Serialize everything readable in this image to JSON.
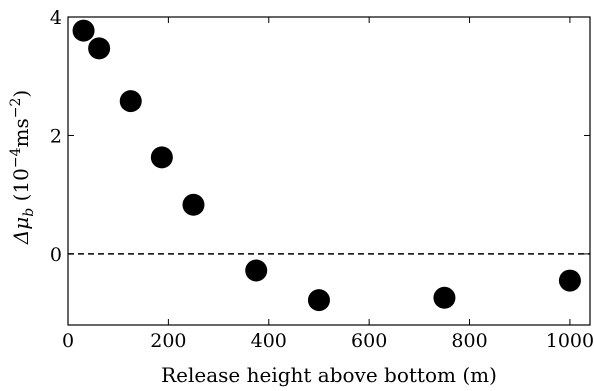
{
  "chart_data": {
    "type": "scatter",
    "title": "",
    "xlabel": "Release height above bottom (m)",
    "ylabel": {
      "prefix": "Δμ",
      "subscript": "b",
      "open": " (10",
      "exp1": "−4",
      "mid": "ms",
      "exp2": "−2",
      "close": ")"
    },
    "xlim": [
      0,
      1040
    ],
    "ylim": [
      -1.2,
      4.0
    ],
    "x_ticks": [
      0,
      200,
      400,
      600,
      800,
      1000
    ],
    "y_ticks": [
      0,
      2,
      4
    ],
    "x_tick_labels": [
      "0",
      "200",
      "400",
      "600",
      "800",
      "1000"
    ],
    "y_tick_labels": [
      "0",
      "2",
      "4"
    ],
    "reference_line": {
      "y": 0,
      "style": "dashed"
    },
    "marker_color": "#000000",
    "grid": false,
    "points": [
      {
        "x": 31,
        "y": 3.77
      },
      {
        "x": 62,
        "y": 3.47
      },
      {
        "x": 125,
        "y": 2.58
      },
      {
        "x": 187,
        "y": 1.63
      },
      {
        "x": 250,
        "y": 0.83
      },
      {
        "x": 375,
        "y": -0.28
      },
      {
        "x": 500,
        "y": -0.78
      },
      {
        "x": 750,
        "y": -0.74
      },
      {
        "x": 1000,
        "y": -0.45
      }
    ]
  }
}
